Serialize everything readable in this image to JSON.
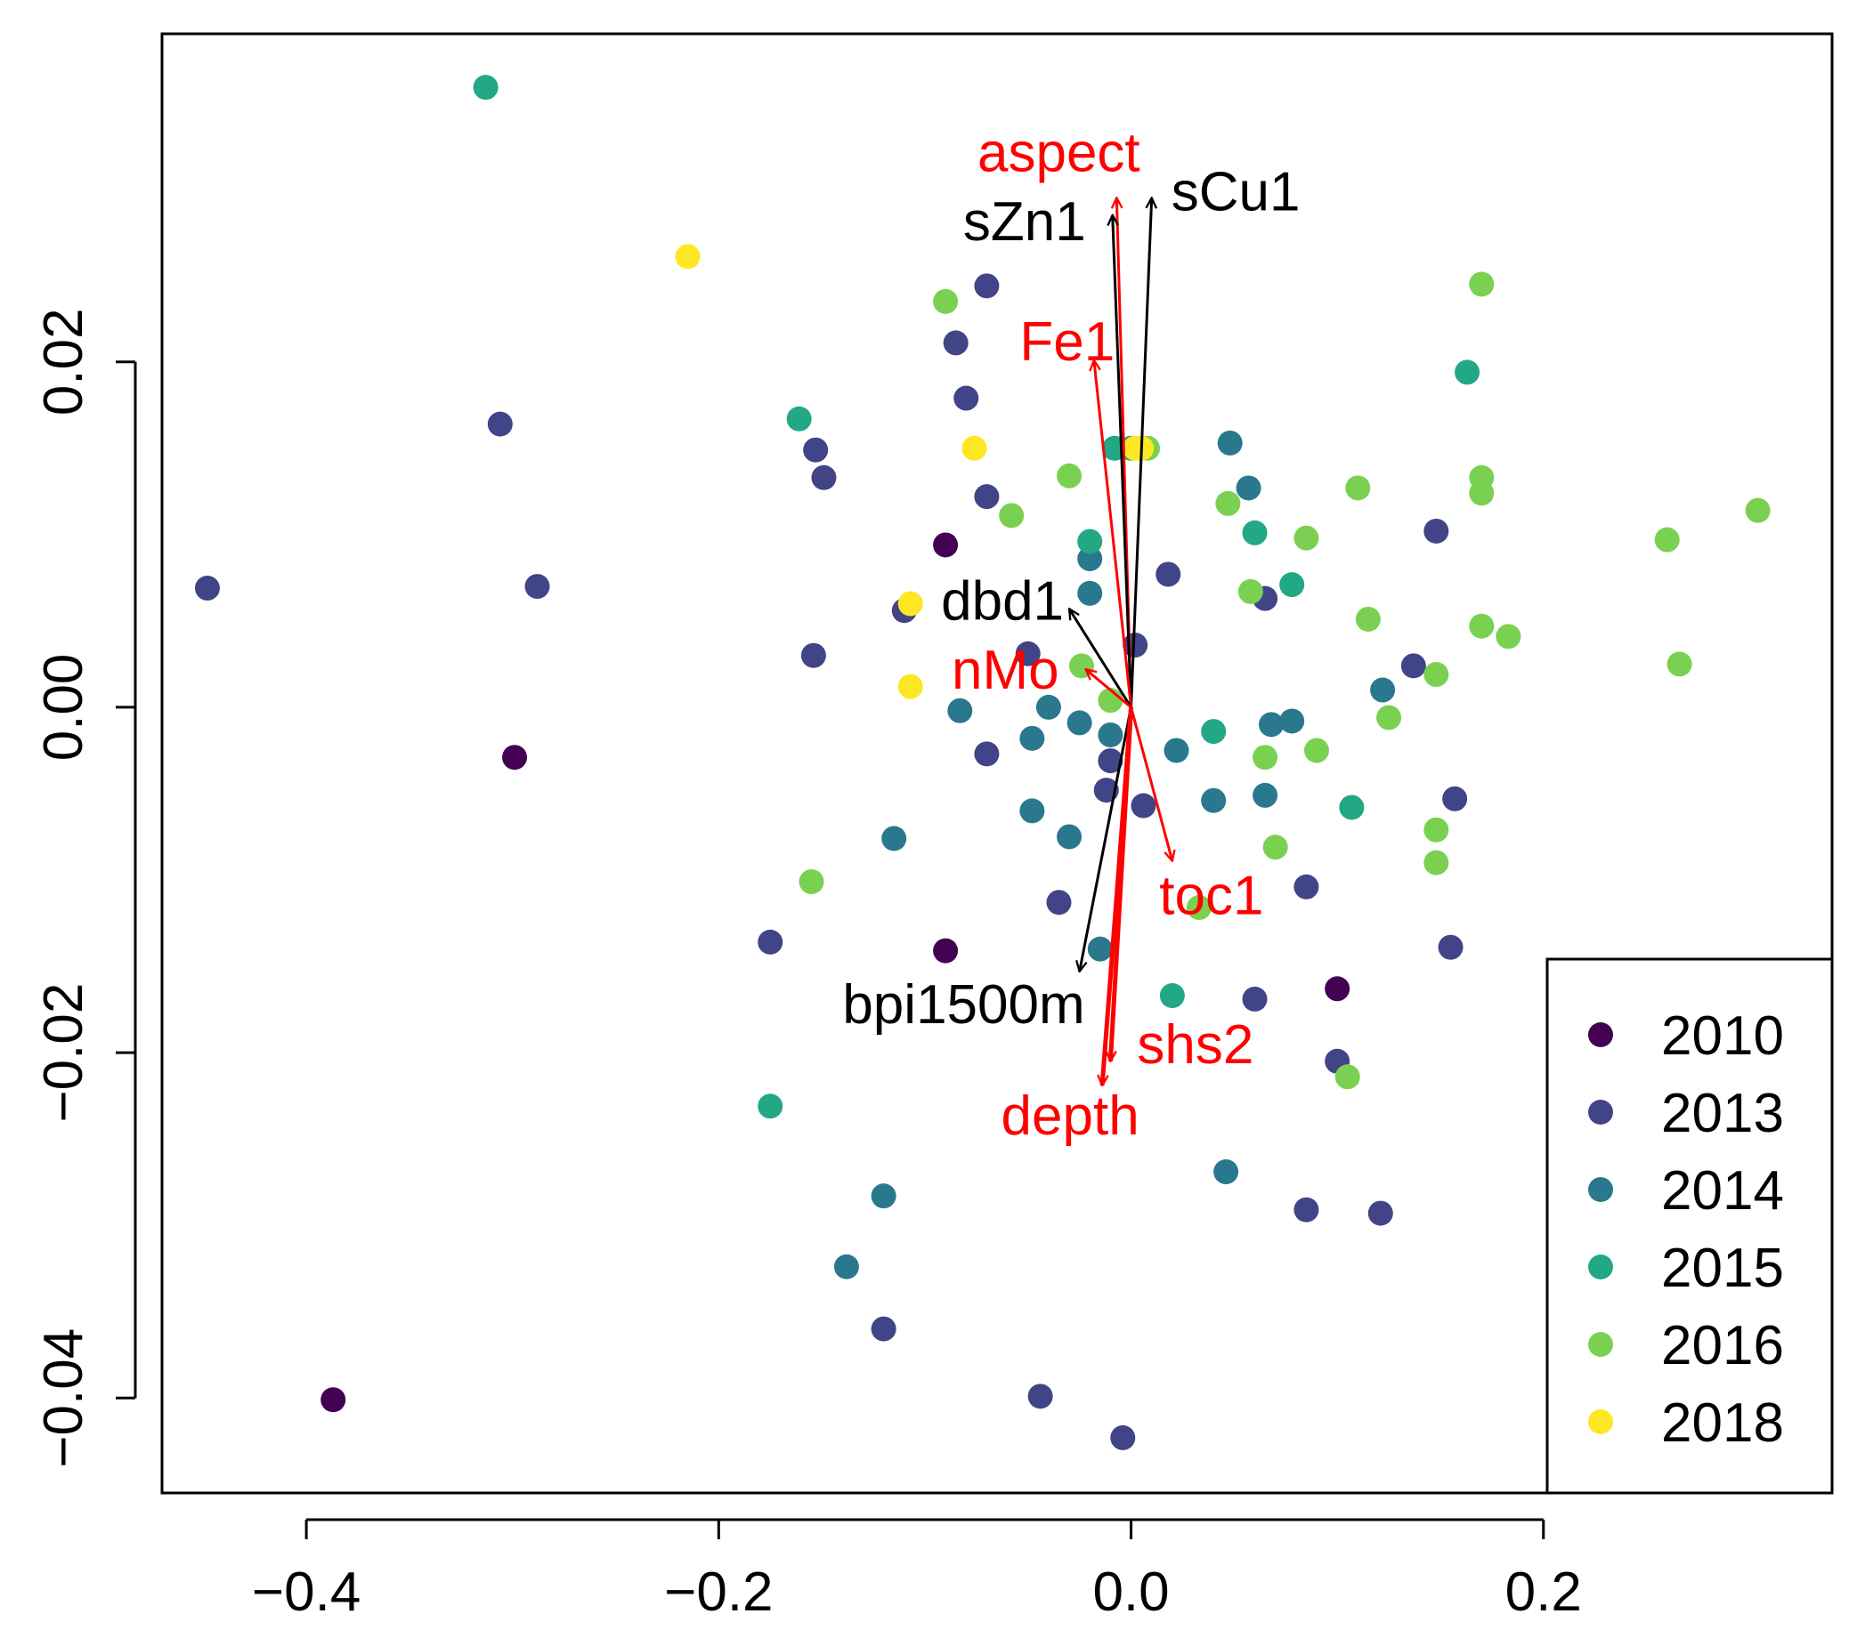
{
  "chart_data": {
    "type": "scatter",
    "title": "",
    "xlabel": "",
    "ylabel": "",
    "xlim": [
      -0.47,
      0.34
    ],
    "ylim": [
      -0.0455,
      0.039
    ],
    "x_ticks": [
      -0.4,
      -0.2,
      0.0,
      0.2
    ],
    "x_tick_labels": [
      "−0.4",
      "−0.2",
      "0.0",
      "0.2"
    ],
    "y_ticks": [
      -0.04,
      -0.02,
      0.0,
      0.02
    ],
    "y_tick_labels": [
      "−0.04",
      "−0.02",
      "0.00",
      "0.02"
    ],
    "legend_position": "bottom-right",
    "series": [
      {
        "name": "2010",
        "color": "#440154",
        "points": [
          [
            -0.387,
            -0.0401
          ],
          [
            -0.299,
            -0.0029
          ],
          [
            -0.09,
            -0.0141
          ],
          [
            -0.09,
            0.0094
          ],
          [
            0.1,
            -0.0163
          ]
        ]
      },
      {
        "name": "2013",
        "color": "#414487",
        "points": [
          [
            -0.448,
            0.0069
          ],
          [
            -0.306,
            0.0164
          ],
          [
            -0.288,
            0.007
          ],
          [
            -0.153,
            0.0149
          ],
          [
            -0.149,
            0.0133
          ],
          [
            -0.154,
            0.003
          ],
          [
            -0.07,
            0.0244
          ],
          [
            -0.085,
            0.0211
          ],
          [
            -0.08,
            0.0179
          ],
          [
            -0.07,
            0.0122
          ],
          [
            -0.11,
            0.0056
          ],
          [
            -0.175,
            -0.0136
          ],
          [
            -0.07,
            -0.0027
          ],
          [
            -0.05,
            0.0031
          ],
          [
            -0.12,
            -0.036
          ],
          [
            -0.044,
            -0.0399
          ],
          [
            -0.004,
            -0.0423
          ],
          [
            -0.035,
            -0.0113
          ],
          [
            -0.012,
            -0.0048
          ],
          [
            -0.01,
            -0.0031
          ],
          [
            0.006,
            -0.0057
          ],
          [
            0.002,
            0.0036
          ],
          [
            0.018,
            0.0077
          ],
          [
            0.065,
            0.0063
          ],
          [
            0.085,
            -0.0104
          ],
          [
            0.06,
            -0.0169
          ],
          [
            0.1,
            -0.0205
          ],
          [
            0.085,
            -0.0291
          ],
          [
            0.121,
            -0.0293
          ],
          [
            0.137,
            0.0024
          ],
          [
            0.148,
            0.0102
          ],
          [
            0.157,
            -0.0053
          ],
          [
            0.155,
            -0.0139
          ]
        ]
      },
      {
        "name": "2014",
        "color": "#2A788E",
        "points": [
          [
            -0.138,
            -0.0324
          ],
          [
            -0.12,
            -0.0283
          ],
          [
            -0.115,
            -0.0076
          ],
          [
            -0.083,
            -0.0002
          ],
          [
            -0.048,
            -0.0018
          ],
          [
            -0.04,
            0.0
          ],
          [
            -0.025,
            -0.0009
          ],
          [
            -0.048,
            -0.006
          ],
          [
            -0.03,
            -0.0075
          ],
          [
            -0.02,
            0.0086
          ],
          [
            -0.02,
            0.0066
          ],
          [
            -0.01,
            -0.0016
          ],
          [
            -0.015,
            -0.014
          ],
          [
            0.022,
            -0.0025
          ],
          [
            0.04,
            -0.0054
          ],
          [
            0.048,
            0.0153
          ],
          [
            0.057,
            0.0127
          ],
          [
            0.065,
            -0.0051
          ],
          [
            0.068,
            -0.001
          ],
          [
            0.078,
            -0.0008
          ],
          [
            0.122,
            0.001
          ],
          [
            0.046,
            -0.0269
          ]
        ]
      },
      {
        "name": "2015",
        "color": "#22A884",
        "points": [
          [
            -0.313,
            0.0359
          ],
          [
            -0.161,
            0.0167
          ],
          [
            -0.175,
            -0.0231
          ],
          [
            -0.02,
            0.0096
          ],
          [
            -0.008,
            0.015
          ],
          [
            0.0,
            0.015
          ],
          [
            0.04,
            -0.0014
          ],
          [
            0.06,
            0.0101
          ],
          [
            0.078,
            0.0071
          ],
          [
            0.02,
            -0.0167
          ],
          [
            0.107,
            -0.0058
          ],
          [
            0.163,
            0.0194
          ]
        ]
      },
      {
        "name": "2016",
        "color": "#7AD151",
        "points": [
          [
            -0.09,
            0.0235
          ],
          [
            -0.058,
            0.0111
          ],
          [
            -0.155,
            -0.0101
          ],
          [
            -0.03,
            0.0134
          ],
          [
            -0.024,
            0.0024
          ],
          [
            -0.01,
            0.0004
          ],
          [
            0.008,
            0.015
          ],
          [
            0.047,
            0.0118
          ],
          [
            0.058,
            0.0067
          ],
          [
            0.065,
            -0.0029
          ],
          [
            0.07,
            -0.0081
          ],
          [
            0.085,
            0.0098
          ],
          [
            0.09,
            -0.0025
          ],
          [
            0.033,
            -0.0116
          ],
          [
            0.11,
            0.0127
          ],
          [
            0.115,
            0.0051
          ],
          [
            0.125,
            -0.0006
          ],
          [
            0.105,
            -0.0214
          ],
          [
            0.148,
            0.0019
          ],
          [
            0.148,
            -0.0071
          ],
          [
            0.148,
            -0.009
          ],
          [
            0.17,
            0.0124
          ],
          [
            0.17,
            0.0133
          ],
          [
            0.17,
            0.0047
          ],
          [
            0.183,
            0.0041
          ],
          [
            0.17,
            0.0245
          ],
          [
            0.26,
            0.0097
          ],
          [
            0.266,
            0.0025
          ],
          [
            0.304,
            0.0114
          ]
        ]
      },
      {
        "name": "2018",
        "color": "#FDE725",
        "points": [
          [
            -0.215,
            0.0261
          ],
          [
            -0.076,
            0.015
          ],
          [
            -0.107,
            0.006
          ],
          [
            -0.107,
            0.0012
          ],
          [
            0.002,
            0.015
          ],
          [
            0.005,
            0.015
          ]
        ]
      }
    ],
    "vectors": [
      {
        "name": "aspect",
        "color": "#ff0000",
        "dx": -0.007,
        "dy": 0.0295
      },
      {
        "name": "sZn1",
        "color": "#000000",
        "dx": -0.009,
        "dy": 0.0285
      },
      {
        "name": "sCu1",
        "color": "#000000",
        "dx": 0.01,
        "dy": 0.0295
      },
      {
        "name": "Fe1",
        "color": "#ff0000",
        "dx": -0.018,
        "dy": 0.0201
      },
      {
        "name": "dbd1",
        "color": "#000000",
        "dx": -0.03,
        "dy": 0.0057
      },
      {
        "name": "nMo",
        "color": "#ff0000",
        "dx": -0.022,
        "dy": 0.0022
      },
      {
        "name": "toc1",
        "color": "#ff0000",
        "dx": 0.02,
        "dy": -0.0089
      },
      {
        "name": "bpi1500m",
        "color": "#000000",
        "dx": -0.025,
        "dy": -0.0153
      },
      {
        "name": "shs2",
        "color": "#ff0000",
        "dx": -0.01,
        "dy": -0.0205
      },
      {
        "name": "depth",
        "color": "#ff0000",
        "dx": -0.014,
        "dy": -0.0219
      }
    ]
  }
}
